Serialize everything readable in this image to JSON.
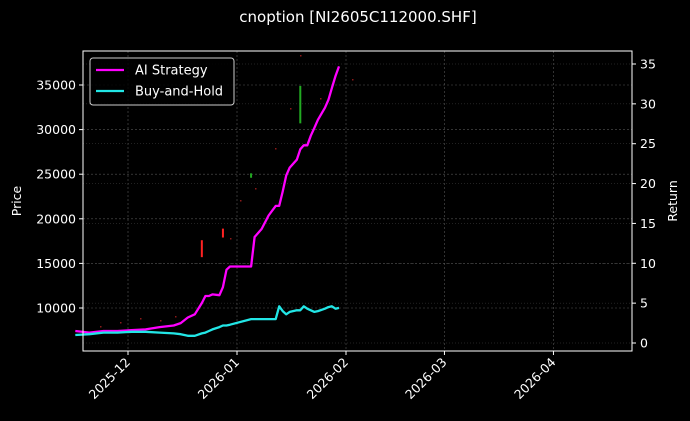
{
  "title": "cnoption [NI2605C112000.SHF]",
  "chart_data": {
    "type": "line",
    "title": "cnoption [NI2605C112000.SHF]",
    "xlabel": "",
    "ylabel": "Price",
    "ylabel_right": "Return",
    "x_ticks": [
      "2025-12",
      "2026-01",
      "2026-02",
      "2026-03",
      "2026-04"
    ],
    "y_ticks_left": [
      10000,
      15000,
      20000,
      25000,
      30000,
      35000
    ],
    "y_ticks_right": [
      0,
      5,
      10,
      15,
      20,
      25,
      30,
      35
    ],
    "ylim_left": [
      5500,
      38800
    ],
    "ylim_right": [
      -1,
      36.5
    ],
    "grid": true,
    "legend": {
      "position": "upper left",
      "entries": [
        "AI Strategy",
        "Buy-and-Hold"
      ]
    },
    "series": [
      {
        "name": "AI Strategy",
        "axis": "right",
        "color": "#ff00ff",
        "x": [
          "2025-11-16",
          "2025-11-20",
          "2025-11-24",
          "2025-11-28",
          "2025-12-02",
          "2025-12-06",
          "2025-12-10",
          "2025-12-14",
          "2025-12-16",
          "2025-12-18",
          "2025-12-20",
          "2025-12-22",
          "2025-12-23",
          "2025-12-24",
          "2025-12-25",
          "2025-12-27",
          "2025-12-28",
          "2025-12-29",
          "2025-12-30",
          "2026-01-05",
          "2026-01-06",
          "2026-01-08",
          "2026-01-10",
          "2026-01-12",
          "2026-01-13",
          "2026-01-14",
          "2026-01-15",
          "2026-01-16",
          "2026-01-18",
          "2026-01-19",
          "2026-01-20",
          "2026-01-21",
          "2026-01-22",
          "2026-01-23",
          "2026-01-24",
          "2026-01-26",
          "2026-01-27",
          "2026-01-28",
          "2026-01-29",
          "2026-01-30"
        ],
        "values": [
          1.5,
          1.3,
          1.5,
          1.5,
          1.6,
          1.7,
          2.0,
          2.2,
          2.5,
          3.2,
          3.6,
          5.0,
          5.9,
          5.9,
          6.1,
          6.0,
          7.0,
          9.2,
          9.6,
          9.6,
          13.3,
          14.3,
          16.0,
          17.2,
          17.2,
          19.0,
          21.0,
          22.0,
          23.0,
          24.3,
          24.8,
          24.8,
          26.0,
          27.0,
          28.0,
          29.5,
          30.5,
          32.0,
          33.5,
          34.7
        ]
      },
      {
        "name": "Buy-and-Hold",
        "axis": "right",
        "color": "#22e6e6",
        "x": [
          "2025-11-16",
          "2025-11-20",
          "2025-11-24",
          "2025-11-28",
          "2025-12-02",
          "2025-12-06",
          "2025-12-10",
          "2025-12-14",
          "2025-12-16",
          "2025-12-18",
          "2025-12-20",
          "2025-12-22",
          "2025-12-23",
          "2025-12-24",
          "2025-12-25",
          "2025-12-27",
          "2025-12-28",
          "2025-12-29",
          "2025-12-30",
          "2026-01-05",
          "2026-01-06",
          "2026-01-08",
          "2026-01-10",
          "2026-01-12",
          "2026-01-13",
          "2026-01-14",
          "2026-01-15",
          "2026-01-16",
          "2026-01-18",
          "2026-01-19",
          "2026-01-20",
          "2026-01-21",
          "2026-01-22",
          "2026-01-23",
          "2026-01-24",
          "2026-01-26",
          "2026-01-27",
          "2026-01-28",
          "2026-01-29",
          "2026-01-30"
        ],
        "values": [
          1.0,
          1.1,
          1.3,
          1.3,
          1.4,
          1.4,
          1.3,
          1.2,
          1.1,
          0.9,
          0.9,
          1.2,
          1.3,
          1.5,
          1.7,
          2.0,
          2.2,
          2.2,
          2.3,
          3.0,
          3.0,
          3.0,
          3.0,
          3.0,
          4.6,
          4.0,
          3.6,
          3.9,
          4.1,
          4.1,
          4.6,
          4.3,
          4.1,
          3.9,
          4.0,
          4.3,
          4.5,
          4.6,
          4.3,
          4.4
        ]
      }
    ],
    "candles": {
      "axis": "left",
      "up_color": "#22aa22",
      "down_color": "#ff2222",
      "notable": [
        {
          "date": "2025-12-22",
          "open": 17600,
          "close": 15700,
          "direction": "down"
        },
        {
          "date": "2025-12-28",
          "open": 18900,
          "close": 17900,
          "direction": "down"
        },
        {
          "date": "2026-01-05",
          "open": 24600,
          "close": 25100,
          "direction": "up"
        },
        {
          "date": "2026-01-19",
          "open": 30700,
          "close": 34900,
          "direction": "up"
        }
      ]
    }
  }
}
